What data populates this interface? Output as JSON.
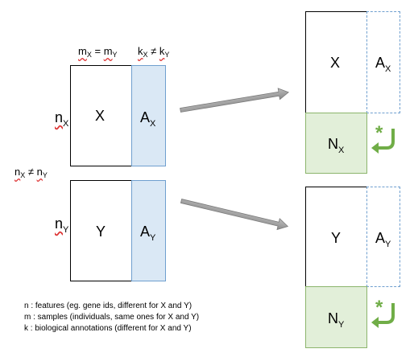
{
  "labels": {
    "m_eq": {
      "a": "m",
      "a_sub": "X",
      "op": " = ",
      "b": "m",
      "b_sub": "Y"
    },
    "k_neq": {
      "a": "k",
      "a_sub": "X",
      "op": " ≠ ",
      "b": "k",
      "b_sub": "Y"
    },
    "n_x": {
      "a": "n",
      "a_sub": "X"
    },
    "n_y": {
      "a": "n",
      "a_sub": "Y"
    },
    "n_neq": {
      "a": "n",
      "a_sub": "X",
      "op": " ≠ ",
      "b": "n",
      "b_sub": "Y"
    }
  },
  "blocks": {
    "x": "X",
    "y": "Y",
    "ax": {
      "main": "A",
      "sub": "X"
    },
    "ay": {
      "main": "A",
      "sub": "Y"
    },
    "nx": {
      "main": "N",
      "sub": "X"
    },
    "ny": {
      "main": "N",
      "sub": "Y"
    }
  },
  "star": "*",
  "legend": [
    "n : features (eg. gene ids, different for X and Y)",
    "m : samples (individuals, same ones for X and Y)",
    "k : biological annotations (different for X and Y)"
  ],
  "colors": {
    "blue_fill": "#dae8f5",
    "blue_border": "#6f9fcf",
    "green_fill": "#e2efd9",
    "green_border": "#8cb56c",
    "green_arrow": "#70ad47",
    "grey_arrow": "#8c8c8c"
  }
}
